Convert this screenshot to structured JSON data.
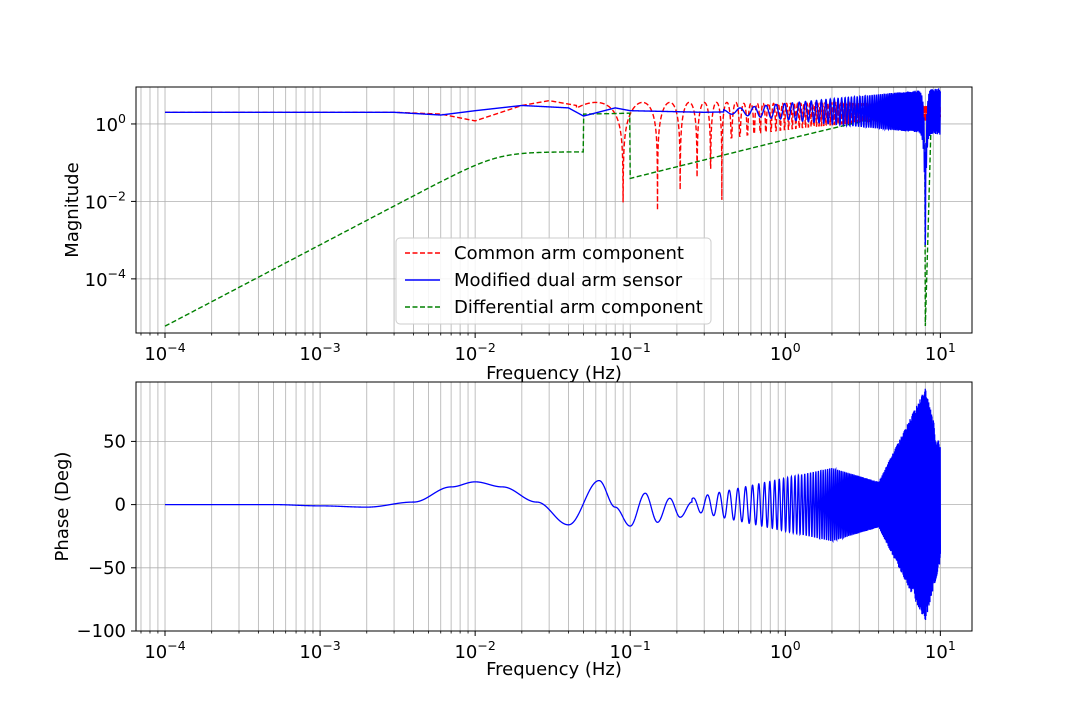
{
  "chart_data": [
    {
      "type": "line",
      "xscale": "log",
      "yscale": "log",
      "xlabel": "Frequency (Hz)",
      "ylabel": "Magnitude",
      "xlim": [
        6.5e-05,
        16
      ],
      "ylim": [
        4e-06,
        9
      ],
      "x_ticks": [
        {
          "value": 0.0001,
          "base": "10",
          "exp": "−4"
        },
        {
          "value": 0.001,
          "base": "10",
          "exp": "−3"
        },
        {
          "value": 0.01,
          "base": "10",
          "exp": "−2"
        },
        {
          "value": 0.1,
          "base": "10",
          "exp": "−1"
        },
        {
          "value": 1,
          "base": "10",
          "exp": "0"
        },
        {
          "value": 10,
          "base": "10",
          "exp": "1"
        }
      ],
      "y_ticks": [
        {
          "value": 0.0001,
          "base": "10",
          "exp": "−4"
        },
        {
          "value": 0.01,
          "base": "10",
          "exp": "−2"
        },
        {
          "value": 1,
          "base": "10",
          "exp": "0"
        }
      ],
      "grid": true,
      "legend_position": "lower-center",
      "series": [
        {
          "name": "Common arm component",
          "color": "#ff0000",
          "style": "dashed",
          "x": [
            0.0001,
            0.001,
            0.003,
            0.006,
            0.01,
            0.02,
            0.03,
            0.045,
            0.06,
            0.08,
            0.1,
            0.12,
            0.2,
            0.5,
            1,
            2,
            3,
            5
          ],
          "y": [
            2.0,
            2.0,
            2.0,
            1.8,
            1.2,
            3.0,
            4.0,
            3.0,
            0.001,
            4.0,
            3.0,
            0.003,
            3.2,
            3.4,
            3.5,
            3.6,
            3.0,
            2.0
          ],
          "notch_frequencies": [
            0.06,
            0.12,
            0.18,
            0.24,
            0.3,
            0.36
          ]
        },
        {
          "name": "Modified dual arm sensor",
          "color": "#0000ff",
          "style": "solid",
          "x": [
            0.0001,
            0.001,
            0.003,
            0.006,
            0.01,
            0.02,
            0.04,
            0.05,
            0.08,
            0.1,
            0.3,
            1,
            2,
            4,
            8,
            10
          ],
          "y": [
            2.0,
            2.0,
            2.0,
            1.7,
            2.2,
            3.0,
            2.6,
            1.6,
            2.6,
            2.2,
            2.0,
            2.2,
            2.0,
            2.4,
            0.002,
            3.5
          ],
          "oscillation_envelope": {
            "from_hz": 0.4,
            "to_hz": 10,
            "min": 0.9,
            "max": 3.8
          },
          "notch_frequencies": [
            8
          ]
        },
        {
          "name": "Differential arm component",
          "color": "#008000",
          "style": "dashed",
          "x": [
            0.0001,
            0.0002,
            0.0005,
            0.001,
            0.002,
            0.005,
            0.01,
            0.02,
            0.05,
            0.1,
            1,
            4,
            6,
            8,
            10
          ],
          "y": [
            6e-06,
            3e-05,
            0.0003,
            0.0015,
            0.01,
            0.1,
            0.4,
            1.0,
            1.8,
            2.0,
            2.0,
            1.5,
            1.0,
            6e-06,
            0.4
          ]
        }
      ]
    },
    {
      "type": "line",
      "xscale": "log",
      "yscale": "linear",
      "xlabel": "Frequency (Hz)",
      "ylabel": "Phase (Deg)",
      "xlim": [
        6.5e-05,
        16
      ],
      "ylim": [
        -100,
        97
      ],
      "x_ticks": [
        {
          "value": 0.0001,
          "base": "10",
          "exp": "−4"
        },
        {
          "value": 0.001,
          "base": "10",
          "exp": "−3"
        },
        {
          "value": 0.01,
          "base": "10",
          "exp": "−2"
        },
        {
          "value": 0.1,
          "base": "10",
          "exp": "−1"
        },
        {
          "value": 1,
          "base": "10",
          "exp": "0"
        },
        {
          "value": 10,
          "base": "10",
          "exp": "1"
        }
      ],
      "y_ticks": [
        {
          "value": 50,
          "label": "50"
        },
        {
          "value": 0,
          "label": "0"
        },
        {
          "value": -50,
          "label": "−50"
        },
        {
          "value": -100,
          "label": "−100"
        }
      ],
      "grid": true,
      "series": [
        {
          "color": "#0000ff",
          "style": "solid",
          "x": [
            0.0001,
            0.0005,
            0.001,
            0.002,
            0.004,
            0.007,
            0.01,
            0.015,
            0.025,
            0.04,
            0.063,
            0.08,
            0.1,
            0.125,
            0.15,
            0.18,
            0.21,
            0.25
          ],
          "y": [
            0,
            0,
            -1,
            -2,
            2,
            14,
            18,
            14,
            2,
            -16,
            19,
            -2,
            -17,
            9,
            -14,
            5,
            -10,
            2
          ],
          "oscillation_envelope": {
            "from_hz": 0.25,
            "to_hz": 10,
            "peak_hz": [
              2,
              8
            ],
            "peak_amplitude": [
              29,
              92
            ],
            "trough_hz": 4,
            "trough_amplitude": 18
          }
        }
      ]
    }
  ]
}
